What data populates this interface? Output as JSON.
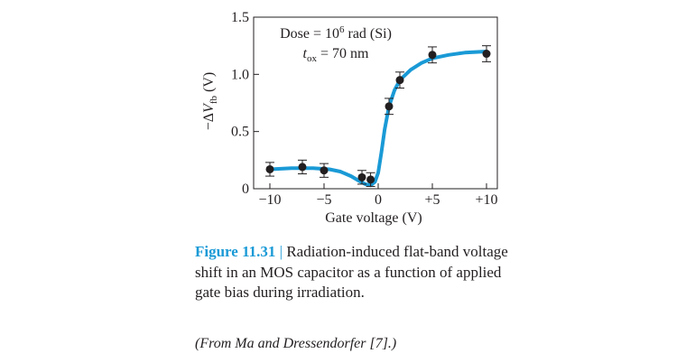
{
  "chart_data": {
    "type": "scatter",
    "xlabel": "Gate voltage (V)",
    "ylabel": "−ΔV_fb (V)",
    "xlim": [
      -11.5,
      11
    ],
    "ylim": [
      0,
      1.5
    ],
    "x_ticks": [
      {
        "value": -10,
        "label": "−10"
      },
      {
        "value": -5,
        "label": "−5"
      },
      {
        "value": 0,
        "label": "0"
      },
      {
        "value": 5,
        "label": "+5"
      },
      {
        "value": 10,
        "label": "+10"
      }
    ],
    "y_ticks": [
      {
        "value": 0,
        "label": "0"
      },
      {
        "value": 0.5,
        "label": "0.5"
      },
      {
        "value": 1.0,
        "label": "1.0"
      },
      {
        "value": 1.5,
        "label": "1.5"
      }
    ],
    "annotations": {
      "dose": "Dose = 10⁶ rad (Si)",
      "tox": "t_ox = 70 nm"
    },
    "points": [
      {
        "x": -10,
        "y": 0.17,
        "err": 0.06
      },
      {
        "x": -7,
        "y": 0.19,
        "err": 0.06
      },
      {
        "x": -5,
        "y": 0.16,
        "err": 0.06
      },
      {
        "x": -1.5,
        "y": 0.1,
        "err": 0.06
      },
      {
        "x": -0.7,
        "y": 0.08,
        "err": 0.06
      },
      {
        "x": 1,
        "y": 0.72,
        "err": 0.07
      },
      {
        "x": 2,
        "y": 0.95,
        "err": 0.07
      },
      {
        "x": 5,
        "y": 1.17,
        "err": 0.07
      },
      {
        "x": 10,
        "y": 1.18,
        "err": 0.07
      }
    ],
    "curve": [
      [
        -10,
        0.17
      ],
      [
        -8,
        0.18
      ],
      [
        -6,
        0.18
      ],
      [
        -4.5,
        0.17
      ],
      [
        -3.5,
        0.15
      ],
      [
        -2.5,
        0.11
      ],
      [
        -1.8,
        0.07
      ],
      [
        -1.2,
        0.04
      ],
      [
        -0.7,
        0.03
      ],
      [
        -0.3,
        0.06
      ],
      [
        0,
        0.14
      ],
      [
        0.3,
        0.32
      ],
      [
        0.6,
        0.52
      ],
      [
        1,
        0.72
      ],
      [
        1.5,
        0.86
      ],
      [
        2,
        0.95
      ],
      [
        3,
        1.04
      ],
      [
        4,
        1.1
      ],
      [
        5,
        1.14
      ],
      [
        6.5,
        1.17
      ],
      [
        8,
        1.19
      ],
      [
        10,
        1.2
      ]
    ],
    "colors": {
      "curve": "#1a9ad6",
      "points": "#231f20"
    }
  },
  "caption": {
    "label": "Figure 11.31",
    "separator": " | ",
    "text": "Radiation-induced flat-band voltage shift in an MOS capacitor as a function of applied gate bias during irradiation.",
    "source": "(From Ma and Dressendorfer [7].)"
  }
}
